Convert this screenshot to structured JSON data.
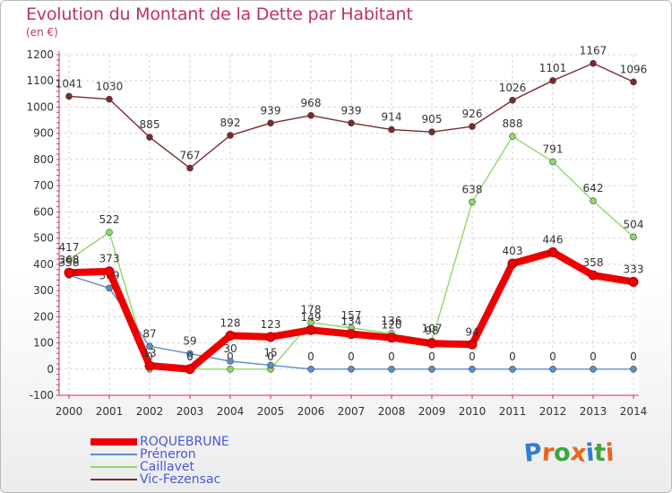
{
  "header": {
    "title": "Evolution du Montant de la Dette par Habitant",
    "unit": "(en €)"
  },
  "logo": {
    "text": "Proxiti",
    "letter_colors": [
      "#2f7fd1",
      "#e8661c",
      "#3aa640",
      "#e8661c",
      "#2f7fd1",
      "#3aa640",
      "#e8661c"
    ]
  },
  "chart_data": {
    "type": "line",
    "x": [
      "2000",
      "2001",
      "2002",
      "2003",
      "2004",
      "2005",
      "2006",
      "2007",
      "2008",
      "2009",
      "2010",
      "2011",
      "2012",
      "2013",
      "2014"
    ],
    "ylim": [
      -100,
      1200
    ],
    "yticks": [
      -100,
      0,
      100,
      200,
      300,
      400,
      500,
      600,
      700,
      800,
      900,
      1000,
      1100,
      1200
    ],
    "grid": true,
    "legend_position": "bottom-left",
    "series": [
      {
        "name": "Vic-Fezensac",
        "color": "#7a2a2e",
        "values": [
          1041,
          1030,
          885,
          767,
          892,
          939,
          968,
          939,
          914,
          905,
          926,
          1026,
          1101,
          1167,
          1096
        ]
      },
      {
        "name": "Caillavet",
        "color": "#8fd86a",
        "values": [
          417,
          522,
          0,
          0,
          0,
          0,
          178,
          157,
          136,
          107,
          638,
          888,
          791,
          642,
          504
        ]
      },
      {
        "name": "Préneron",
        "color": "#5b8fc7",
        "values": [
          358,
          309,
          87,
          59,
          30,
          15,
          0,
          0,
          0,
          0,
          0,
          0,
          0,
          0,
          0
        ]
      },
      {
        "name": "ROQUEBRUNE",
        "color": "#ee0000",
        "values": [
          368,
          373,
          13,
          0,
          128,
          123,
          149,
          134,
          120,
          98,
          94,
          403,
          446,
          358,
          333
        ]
      }
    ]
  }
}
